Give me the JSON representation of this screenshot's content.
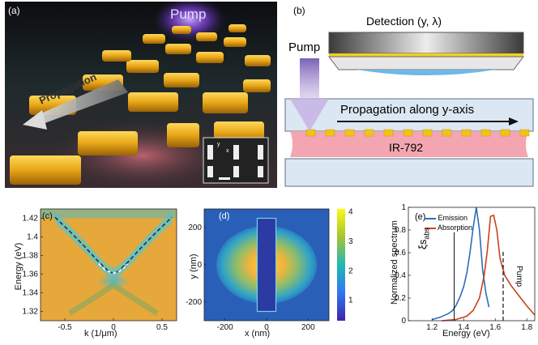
{
  "panel_a": {
    "tag": "(a)",
    "pump_label": "Pump",
    "propagation_label": "Propagation",
    "inset_axes": [
      "y",
      "x"
    ]
  },
  "panel_b": {
    "tag": "(b)",
    "detection_label": "Detection (y, λ)",
    "pump_label": "Pump",
    "propagation_label": "Propagation along y-axis",
    "dye_label": "IR-792"
  },
  "colors": {
    "gold": "#e8b21c",
    "pink": "#f4a3ae",
    "glass": "#d6e6f3",
    "emission": "#2a6fb6",
    "absorption": "#c8431b"
  },
  "chart_data": [
    {
      "id": "c",
      "type": "heatmap",
      "tag": "(c)",
      "xlabel": "k (1/μm)",
      "ylabel": "Energy (eV)",
      "xlim": [
        -0.75,
        0.65
      ],
      "ylim": [
        1.31,
        1.43
      ],
      "xticks": [
        -0.5,
        0,
        0.5
      ],
      "xtick_labels": [
        "-0.5",
        "0",
        "0.5"
      ],
      "yticks": [
        1.32,
        1.34,
        1.36,
        1.38,
        1.4,
        1.42
      ],
      "ytick_labels": [
        "1.32",
        "1.34",
        "1.36",
        "1.38",
        "1.4",
        "1.42"
      ],
      "dispersion_fit": {
        "k": [
          -0.6,
          -0.45,
          -0.3,
          -0.15,
          -0.05,
          0,
          0.05,
          0.15,
          0.3,
          0.45,
          0.6
        ],
        "E": [
          1.421,
          1.406,
          1.39,
          1.373,
          1.363,
          1.361,
          1.363,
          1.373,
          1.39,
          1.406,
          1.421
        ]
      },
      "lower_fit": {
        "k": [
          -0.15,
          -0.08,
          0,
          0.08,
          0.15
        ],
        "E": [
          1.371,
          1.364,
          1.361,
          1.364,
          1.371
        ]
      }
    },
    {
      "id": "d",
      "type": "heatmap",
      "tag": "(d)",
      "xlabel": "x (nm)",
      "ylabel": "y (nm)",
      "xlim": [
        -300,
        300
      ],
      "ylim": [
        -300,
        300
      ],
      "xticks": [
        -200,
        0,
        200
      ],
      "xtick_labels": [
        "-200",
        "0",
        "200"
      ],
      "yticks": [
        -200,
        0,
        200
      ],
      "ytick_labels": [
        "-200",
        "0",
        "200"
      ],
      "colorbar_range": [
        0.3,
        4.1
      ],
      "colorbar_ticks": [
        1,
        2,
        3,
        4
      ],
      "colorbar_tick_labels": [
        "1",
        "2",
        "3",
        "4"
      ]
    },
    {
      "id": "e",
      "type": "line",
      "tag": "(e)",
      "xlabel": "Energy (eV)",
      "ylabel": "Normalized spectrum",
      "xlim": [
        1.05,
        1.85
      ],
      "ylim": [
        0,
        1
      ],
      "xticks": [
        1.2,
        1.4,
        1.6,
        1.8
      ],
      "xtick_labels": [
        "1.2",
        "1.4",
        "1.6",
        "1.8"
      ],
      "yticks": [
        0,
        0.2,
        0.4,
        0.6,
        0.8,
        1
      ],
      "ytick_labels": [
        "0",
        "0.2",
        "0.4",
        "0.6",
        "0.8",
        "1"
      ],
      "series": [
        {
          "name": "Emission",
          "x": [
            1.2,
            1.25,
            1.3,
            1.33,
            1.35,
            1.38,
            1.4,
            1.42,
            1.44,
            1.46,
            1.48,
            1.5,
            1.52,
            1.54,
            1.56
          ],
          "y": [
            0.01,
            0.03,
            0.06,
            0.09,
            0.13,
            0.22,
            0.3,
            0.42,
            0.6,
            0.82,
            1.0,
            0.8,
            0.45,
            0.25,
            0.12
          ]
        },
        {
          "name": "Absorption",
          "x": [
            1.26,
            1.35,
            1.42,
            1.46,
            1.5,
            1.53,
            1.55,
            1.57,
            1.59,
            1.61,
            1.63,
            1.66,
            1.7,
            1.75,
            1.8,
            1.85
          ],
          "y": [
            0.0,
            0.01,
            0.04,
            0.09,
            0.2,
            0.4,
            0.62,
            0.92,
            0.93,
            0.8,
            0.55,
            0.4,
            0.31,
            0.22,
            0.13,
            0.05
          ]
        }
      ],
      "annotations": [
        {
          "text": "ξs",
          "sub": "abs",
          "x": 1.34,
          "style": "solid"
        },
        {
          "text": "Pump",
          "x": 1.65,
          "style": "dashed"
        }
      ]
    }
  ]
}
